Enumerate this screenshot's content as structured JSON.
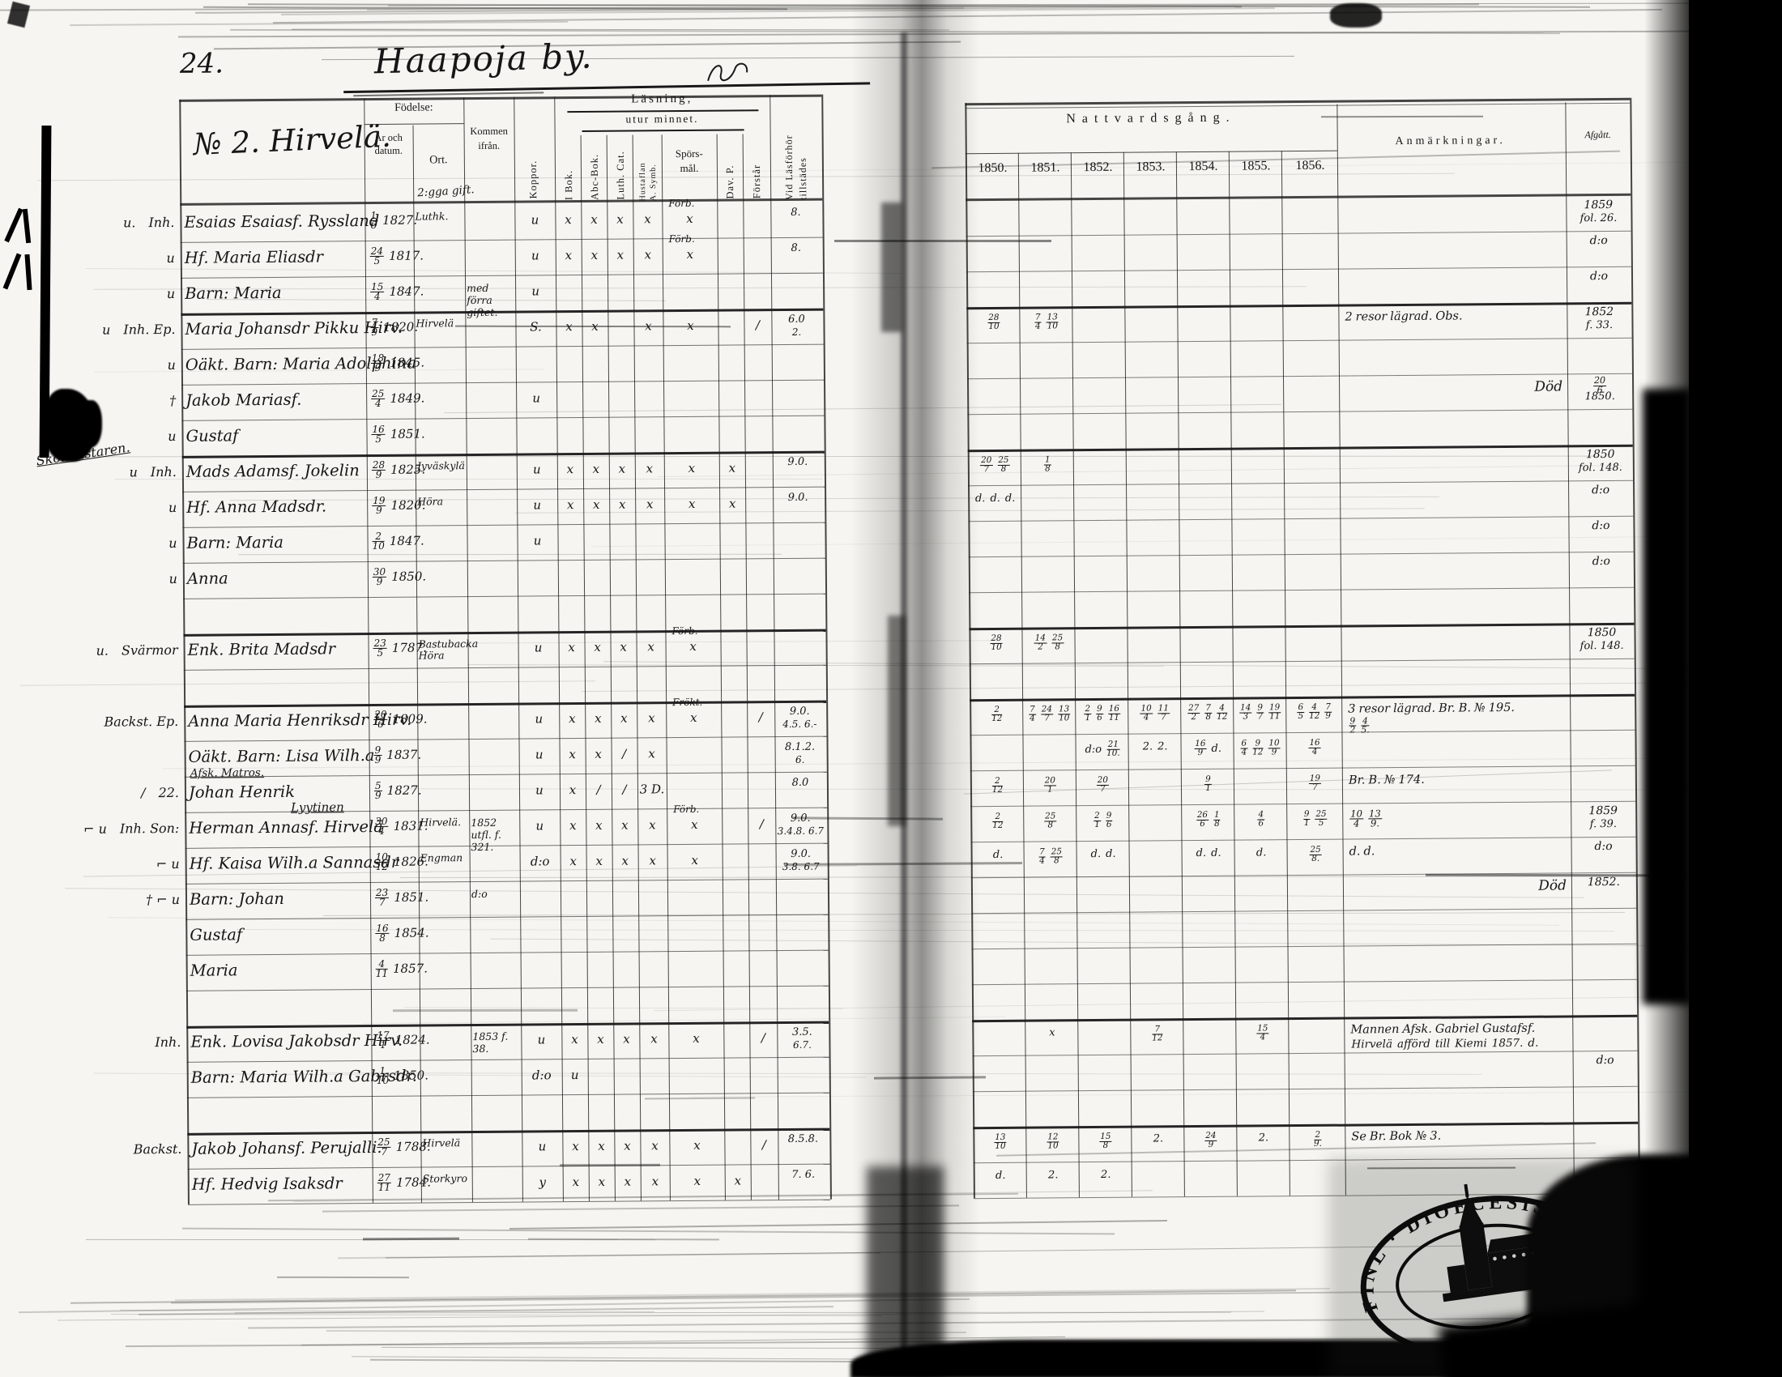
{
  "page": {
    "number": "24.",
    "village": "Haapoja by.",
    "house": "№ 2. Hirvelä.",
    "marriage_note": "2:gga gift."
  },
  "left_header": {
    "fodelse": "Födelse:",
    "ar_datum": "År och datum.",
    "ort": "Ort.",
    "kommen": "Kommen ifrån.",
    "koppor": "Koppor.",
    "lasning": "Läsning,",
    "utur": "utur minnet.",
    "ibok": "I Bok.",
    "abc": "Abc-Bok.",
    "luth": "Luth. Cat.",
    "hust1": "Hustaflan",
    "hust2": "A. Symb.",
    "spors1": "Spörs-",
    "spors2": "mål.",
    "dav": "Dav. P.",
    "forstar": "Förstår",
    "vid1": "Vid Läsförhör",
    "vid2": "tillstädes"
  },
  "right_header": {
    "title": "Nattvardsgång.",
    "years": [
      "1850.",
      "1851.",
      "1852.",
      "1853.",
      "1854.",
      "1855.",
      "1856."
    ],
    "anm": "Anmärkningar.",
    "afgatt": "Afgått."
  },
  "rows": [
    {
      "pm": "u.",
      "m": "Inh.",
      "n": "Esaias Esaiasf. Ryssland",
      "d": "1/6",
      "yr": "1827.",
      "ort": "Luthk.",
      "rd": [
        "u",
        "x",
        "x",
        "x",
        "x",
        "x",
        "",
        ""
      ],
      "spn": "Förb.",
      "vid": "8.",
      "af": "1859",
      "af2": "fol. 26."
    },
    {
      "pm": "u",
      "n": "Hf. Maria Eliasdr",
      "d": "24/5",
      "yr": "1817.",
      "rd": [
        "u",
        "x",
        "x",
        "x",
        "x",
        "x",
        "",
        ""
      ],
      "spn": "Förb.",
      "vid": "8.",
      "af": "d:o"
    },
    {
      "pm": "u",
      "n": "Barn: Maria",
      "d": "15/4",
      "yr": "1847.",
      "kom": "med förra",
      "kom2": "giftet.",
      "rd": [
        "u",
        "",
        "",
        "",
        "",
        "",
        "",
        ""
      ],
      "af": "d:o"
    },
    {
      "pm": "u",
      "m": "Inh. Ep.",
      "n": "Maria Johansdr Pikku Hirv.",
      "d": "7/9",
      "yr": "1820.",
      "ort": "Hirvelä",
      "rd": [
        "S.",
        "x",
        "x",
        "",
        "x",
        "x",
        "",
        "/"
      ],
      "vid": "6.0",
      "vid2": "2.",
      "c": [
        "28/10",
        "7/4 13/10",
        "",
        "",
        "",
        "",
        ""
      ],
      "anm": "2 resor lägrad. Obs.",
      "af": "1852",
      "af2": "f. 33."
    },
    {
      "pm": "u",
      "n": "Oäkt. Barn: Maria Adolphina",
      "d": "18/9",
      "yr": "1845."
    },
    {
      "pm": "†",
      "n": "Jakob Mariasf.",
      "d": "25/4",
      "yr": "1849.",
      "rd": [
        "u",
        "",
        "",
        "",
        "",
        "",
        "",
        ""
      ],
      "anm_r": "Död",
      "af": "20/6",
      "af2": "1850."
    },
    {
      "pm": "u",
      "n": "Gustaf",
      "d": "16/5",
      "yr": "1851."
    },
    {
      "pm": "u",
      "m": "Inh.",
      "ma": "Skolmästaren.",
      "n": "Mads Adamsf. Jokelin",
      "d": "28/9",
      "yr": "1825.",
      "ort": "Jyväskylä",
      "rd": [
        "u",
        "x",
        "x",
        "x",
        "x",
        "x",
        "x",
        ""
      ],
      "vid": "9.0.",
      "c": [
        "20/7 25/8",
        "1/8",
        "",
        "",
        "",
        "",
        ""
      ],
      "af": "1850",
      "af2": "fol. 148."
    },
    {
      "pm": "u",
      "n": "Hf. Anna Madsdr.",
      "d": "19/9",
      "yr": "1820.",
      "ort": "Höra",
      "rd": [
        "u",
        "x",
        "x",
        "x",
        "x",
        "x",
        "x",
        ""
      ],
      "vid": "9.0.",
      "c": [
        "d. d. d.",
        "",
        "",
        "",
        "",
        "",
        ""
      ],
      "af": "d:o"
    },
    {
      "pm": "u",
      "n": "Barn: Maria",
      "d": "2/10",
      "yr": "1847.",
      "rd": [
        "u",
        "",
        "",
        "",
        "",
        "",
        "",
        ""
      ],
      "af": "d:o"
    },
    {
      "pm": "u",
      "n": "Anna",
      "d": "30/9",
      "yr": "1850.",
      "af": "d:o"
    },
    {},
    {
      "pm": "u.",
      "m": "Svärmor",
      "n": "Enk. Brita Madsdr",
      "d": "23/5",
      "yr": "1787.",
      "ort": "Bastubacka",
      "ort2": "Höra",
      "rd": [
        "u",
        "x",
        "x",
        "x",
        "x",
        "x",
        "",
        ""
      ],
      "spn": "Förb.",
      "c": [
        "28/10",
        "14/2 25/8",
        "",
        "",
        "",
        "",
        ""
      ],
      "af": "1850",
      "af2": "fol. 148."
    },
    {},
    {
      "m": "Backst. Ep.",
      "n": "Anna Maria Henriksdr Hirv.",
      "d": "20/6",
      "yr": "1809.",
      "rd": [
        "u",
        "x",
        "x",
        "x",
        "x",
        "x",
        "",
        "/"
      ],
      "spn": "Frökt.",
      "vid": "9.0.",
      "vid2": "4.5. 6.-",
      "c": [
        "2/12",
        "7/4 24/7 13/10",
        "2/1 9/6 16/11",
        "10/4 11/7",
        "27/2 7/8 4/12",
        "14/3 9/7 19/11",
        "6/5 4/12 7/9"
      ],
      "anm": "3 resor lägrad. Br. B. № 195.",
      "anm2": "9/2 4/5."
    },
    {
      "n": "Oäkt. Barn: Lisa Wilh.a",
      "d": "9/9",
      "yr": "1837.",
      "rd": [
        "u",
        "x",
        "x",
        "/",
        "x",
        "",
        "",
        ""
      ],
      "vid": "8.1.2.",
      "vid2": "6.",
      "c": [
        "",
        "",
        "d:o 21/10.",
        "2. 2.",
        "16/9 d.",
        "6/4 9/12 10/9",
        "16/4"
      ]
    },
    {
      "pm": "/",
      "m": "22.",
      "na": "Afsk. Matros.",
      "n": "Johan Henrik",
      "nb": "Lyytinen",
      "d": "5/9",
      "yr": "1827.",
      "rd": [
        "u",
        "x",
        "/",
        "/",
        "3 D.",
        "",
        "",
        ""
      ],
      "vid": "8.0",
      "c": [
        "2/12",
        "20/1",
        "20/7",
        "",
        "9/1",
        "",
        "19/7"
      ],
      "anm": "Br. B. № 174."
    },
    {
      "pm": "⌐ u",
      "m": "Inh. Son:",
      "n": "Herman Annasf. Hirvelä",
      "d": "30/4",
      "yr": "1831.",
      "ort": "Hirvelä.",
      "kom": "1852 utfl.",
      "kom2": "f. 321.",
      "rd": [
        "u",
        "x",
        "x",
        "x",
        "x",
        "x",
        "",
        "/"
      ],
      "spn": "Förb.",
      "vid": "9.0.",
      "vid2": "3.4.8. 6.7",
      "c": [
        "2/12",
        "25/8",
        "2/1 9/6",
        "",
        "26/6 1/8",
        "4/6",
        "9/1 25/5"
      ],
      "anm": "10/4 13/9.",
      "af": "1859",
      "af2": "f. 39."
    },
    {
      "pm": "⌐ u",
      "n": "Hf. Kaisa Wilh.a Sannasdr",
      "d": "10/12",
      "yr": "1826.",
      "ort": "Engman",
      "rd": [
        "d:o",
        "x",
        "x",
        "x",
        "x",
        "x",
        "",
        ""
      ],
      "vid": "9.0.",
      "vid2": "3.8. 6.7",
      "c": [
        "d.",
        "7/4 25/8",
        "d. d.",
        "",
        "d. d.",
        "d.",
        "25/8."
      ],
      "anm": "d. d.",
      "af": "d:o"
    },
    {
      "pm": "† ⌐ u",
      "n": "Barn: Johan",
      "d": "23/7",
      "yr": "1851.",
      "kom": "d:o",
      "anm_r": "Död",
      "af": "1852."
    },
    {
      "n": "Gustaf",
      "d": "16/8",
      "yr": "1854."
    },
    {
      "n": "Maria",
      "d": "4/11",
      "yr": "1857."
    },
    {},
    {
      "m": "Inh.",
      "n": "Enk. Lovisa Jakobsdr Hirv.",
      "d": "17/1",
      "yr": "1824.",
      "kom": "1853",
      "kom2": "f. 38.",
      "rd": [
        "u",
        "x",
        "x",
        "x",
        "x",
        "x",
        "",
        "/"
      ],
      "vid": "3.5.",
      "vid2": "6.7.",
      "c": [
        "",
        "x",
        "",
        "7/12",
        "",
        "15/4",
        ""
      ],
      "anm": "Mannen Afsk. Gabriel Gustafsf.",
      "anm2": "Hirvelä afförd till Kiemi 1857. d."
    },
    {
      "n": "Barn: Maria Wilh.a Gabrsdr.",
      "d": "1/10",
      "yr": "1850.",
      "rd": [
        "d:o",
        "u",
        "",
        "",
        "",
        "",
        "",
        ""
      ],
      "af": "d:o"
    },
    {},
    {
      "m": "Backst.",
      "n": "Jakob Johansf. Perujalli.",
      "d": "25/7",
      "yr": "1788.",
      "ort": "Hirvelä",
      "rd": [
        "u",
        "x",
        "x",
        "x",
        "x",
        "x",
        "",
        "/"
      ],
      "vid": "8.5.8.",
      "c": [
        "13/10",
        "12/10",
        "15/8",
        "2.",
        "24/9",
        "2.",
        "2/9."
      ],
      "anm": "Se Br. Bok № 3."
    },
    {
      "n": "Hf. Hedvig Isaksdr",
      "d": "27/11",
      "yr": "1784.",
      "ort": "Storkyro",
      "rd": [
        "y",
        "x",
        "x",
        "x",
        "x",
        "x",
        "x",
        ""
      ],
      "vid": "7. 6.",
      "c": [
        "d.",
        "2.",
        "2.",
        "",
        "",
        "",
        ""
      ]
    }
  ],
  "stamp": {
    "ring_text": "FINL · DIOECESIS ABOENSIS · MAG",
    "icon": "church-icon"
  }
}
